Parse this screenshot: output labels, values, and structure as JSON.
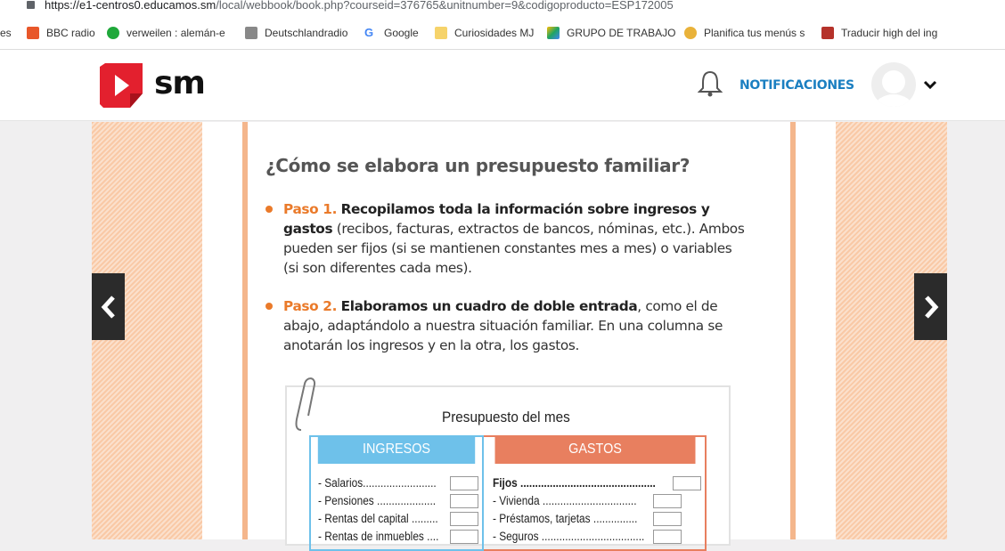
{
  "browser": {
    "url_host": "https://e1-centros0.educamos.sm",
    "url_path": "/local/webbook/book.php?courseid=376765&unitnumber=9&codigoproducto=ESP172005",
    "bookmarks": [
      {
        "label": "es",
        "color": ""
      },
      {
        "label": "BBC radio",
        "color": "#e8572a"
      },
      {
        "label": "verweilen : alemán-e",
        "color": "#1fa83a"
      },
      {
        "label": "Deutschlandradio",
        "color": "#888"
      },
      {
        "label": "Google",
        "color": "#4285f4"
      },
      {
        "label": "Curiosidades MJ",
        "color": "#f6d36a"
      },
      {
        "label": "GRUPO DE TRABAJO",
        "color": "#1fa463"
      },
      {
        "label": "Planifica tus menús s",
        "color": "#e9b23a"
      },
      {
        "label": "Traducir high del ing",
        "color": "#b5322a"
      }
    ]
  },
  "header": {
    "logo_text": "sm",
    "notifications": "NOTIFICACIONES",
    "brand_color": "#e3202e",
    "accent_color": "#1b7fc1"
  },
  "content": {
    "title": "¿Cómo se elabora un presupuesto familiar?",
    "step1": {
      "label": "Paso 1.",
      "bold": "Recopilamos toda la información sobre ingresos y gastos",
      "text": " (recibos, facturas, extractos de bancos, nóminas, etc.). Ambos pueden ser fijos (si se mantienen constantes mes a mes) o variables (si son diferentes cada mes)."
    },
    "step2": {
      "label": "Paso 2.",
      "bold": "Elaboramos un cuadro de doble entrada",
      "text": ", como el de abajo, adaptándolo a nuestra situación familiar. En una columna se anotarán los ingresos y en la otra, los gastos."
    },
    "table": {
      "title": "Presupuesto del mes",
      "income_header": "INGRESOS",
      "expense_header": "GASTOS",
      "income_rows": [
        "- Salarios.........................",
        "- Pensiones ....................",
        "- Rentas del capital .........",
        "- Rentas de inmuebles ...."
      ],
      "expense_rows": [
        "Fijos ..............................................",
        "- Vivienda ................................",
        "- Préstamos, tarjetas ...............",
        "- Seguros ..................................."
      ]
    }
  }
}
